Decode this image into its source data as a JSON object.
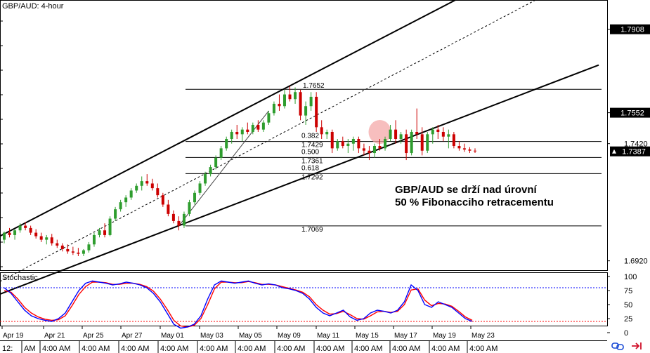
{
  "chart_data": {
    "type": "candlestick",
    "title": "GBP/AUD: 4-hour",
    "price_axis": {
      "ylim": [
        1.688,
        1.803
      ],
      "ticks": [
        1.692,
        1.742,
        1.7552,
        1.7908
      ],
      "current_price": "1.7387",
      "current_price_value": 1.7387
    },
    "x_axis": {
      "date_labels": [
        "Apr 19",
        "Apr 21",
        "Apr 25",
        "Apr 27",
        "May 01",
        "May 03",
        "May 05",
        "May 09",
        "May 11",
        "May 15",
        "May 17",
        "May 19",
        "May 23"
      ],
      "time_labels": [
        "12:",
        "AM",
        "4:00 AM",
        "4:00 AM",
        "4:00 AM",
        "4:00 AM",
        "4:00 AM",
        "4:00 AM",
        "4:00 AM",
        "4:00 AM",
        "4:00 AM",
        "4:00 AM",
        "4:00 AM",
        "4:00 AM"
      ]
    },
    "candles": [
      [
        1.701,
        1.7045,
        1.6995,
        1.704
      ],
      [
        1.704,
        1.706,
        1.702,
        1.703
      ],
      [
        1.703,
        1.7055,
        1.701,
        1.705
      ],
      [
        1.705,
        1.708,
        1.704,
        1.707
      ],
      [
        1.707,
        1.7085,
        1.705,
        1.706
      ],
      [
        1.706,
        1.707,
        1.703,
        1.704
      ],
      [
        1.704,
        1.7055,
        1.7015,
        1.7025
      ],
      [
        1.7025,
        1.704,
        1.7,
        1.701
      ],
      [
        1.701,
        1.703,
        1.699,
        1.702
      ],
      [
        1.702,
        1.7035,
        1.6985,
        1.6995
      ],
      [
        1.6995,
        1.701,
        1.6975,
        1.6985
      ],
      [
        1.6985,
        1.6995,
        1.696,
        1.697
      ],
      [
        1.697,
        1.699,
        1.695,
        1.696
      ],
      [
        1.696,
        1.698,
        1.6945,
        1.6955
      ],
      [
        1.6955,
        1.6975,
        1.694,
        1.695
      ],
      [
        1.695,
        1.697,
        1.694,
        1.6965
      ],
      [
        1.6965,
        1.7,
        1.6955,
        1.699
      ],
      [
        1.699,
        1.704,
        1.698,
        1.703
      ],
      [
        1.703,
        1.706,
        1.702,
        1.705
      ],
      [
        1.705,
        1.708,
        1.702,
        1.703
      ],
      [
        1.703,
        1.711,
        1.7025,
        1.71
      ],
      [
        1.71,
        1.715,
        1.709,
        1.714
      ],
      [
        1.714,
        1.718,
        1.713,
        1.717
      ],
      [
        1.717,
        1.72,
        1.715,
        1.719
      ],
      [
        1.719,
        1.723,
        1.718,
        1.722
      ],
      [
        1.722,
        1.725,
        1.721,
        1.724
      ],
      [
        1.724,
        1.728,
        1.722,
        1.726
      ],
      [
        1.726,
        1.729,
        1.724,
        1.725
      ],
      [
        1.725,
        1.727,
        1.722,
        1.723
      ],
      [
        1.723,
        1.725,
        1.719,
        1.72
      ],
      [
        1.72,
        1.721,
        1.715,
        1.716
      ],
      [
        1.716,
        1.718,
        1.711,
        1.712
      ],
      [
        1.712,
        1.7135,
        1.708,
        1.709
      ],
      [
        1.709,
        1.711,
        1.705,
        1.707
      ],
      [
        1.707,
        1.713,
        1.706,
        1.712
      ],
      [
        1.712,
        1.718,
        1.711,
        1.717
      ],
      [
        1.717,
        1.722,
        1.716,
        1.721
      ],
      [
        1.721,
        1.726,
        1.72,
        1.725
      ],
      [
        1.725,
        1.73,
        1.724,
        1.729
      ],
      [
        1.729,
        1.733,
        1.728,
        1.732
      ],
      [
        1.732,
        1.737,
        1.731,
        1.736
      ],
      [
        1.736,
        1.741,
        1.735,
        1.74
      ],
      [
        1.74,
        1.745,
        1.739,
        1.744
      ],
      [
        1.744,
        1.748,
        1.742,
        1.747
      ],
      [
        1.747,
        1.75,
        1.744,
        1.746
      ],
      [
        1.746,
        1.749,
        1.743,
        1.748
      ],
      [
        1.748,
        1.751,
        1.746,
        1.747
      ],
      [
        1.747,
        1.751,
        1.746,
        1.75
      ],
      [
        1.75,
        1.752,
        1.747,
        1.748
      ],
      [
        1.748,
        1.752,
        1.747,
        1.751
      ],
      [
        1.751,
        1.756,
        1.75,
        1.755
      ],
      [
        1.755,
        1.76,
        1.754,
        1.759
      ],
      [
        1.759,
        1.763,
        1.756,
        1.758
      ],
      [
        1.758,
        1.765,
        1.757,
        1.763
      ],
      [
        1.763,
        1.7665,
        1.76,
        1.761
      ],
      [
        1.761,
        1.766,
        1.759,
        1.764
      ],
      [
        1.764,
        1.765,
        1.752,
        1.754
      ],
      [
        1.754,
        1.76,
        1.75,
        1.758
      ],
      [
        1.758,
        1.764,
        1.756,
        1.762
      ],
      [
        1.762,
        1.764,
        1.747,
        1.749
      ],
      [
        1.749,
        1.752,
        1.744,
        1.746
      ],
      [
        1.746,
        1.748,
        1.744,
        1.747
      ],
      [
        1.747,
        1.748,
        1.738,
        1.74
      ],
      [
        1.74,
        1.744,
        1.739,
        1.743
      ],
      [
        1.743,
        1.745,
        1.74,
        1.741
      ],
      [
        1.741,
        1.744,
        1.738,
        1.742
      ],
      [
        1.742,
        1.745,
        1.739,
        1.744
      ],
      [
        1.744,
        1.745,
        1.738,
        1.74
      ],
      [
        1.74,
        1.742,
        1.737,
        1.739
      ],
      [
        1.739,
        1.741,
        1.735,
        1.738
      ],
      [
        1.738,
        1.742,
        1.736,
        1.741
      ],
      [
        1.741,
        1.744,
        1.739,
        1.74
      ],
      [
        1.74,
        1.745,
        1.739,
        1.744
      ],
      [
        1.744,
        1.75,
        1.743,
        1.748
      ],
      [
        1.748,
        1.752,
        1.742,
        1.744
      ],
      [
        1.744,
        1.747,
        1.742,
        1.746
      ],
      [
        1.746,
        1.748,
        1.735,
        1.738
      ],
      [
        1.738,
        1.748,
        1.737,
        1.747
      ],
      [
        1.747,
        1.757,
        1.744,
        1.746
      ],
      [
        1.746,
        1.749,
        1.737,
        1.739
      ],
      [
        1.739,
        1.747,
        1.738,
        1.746
      ],
      [
        1.746,
        1.749,
        1.742,
        1.748
      ],
      [
        1.748,
        1.75,
        1.744,
        1.747
      ],
      [
        1.747,
        1.749,
        1.743,
        1.745
      ],
      [
        1.745,
        1.748,
        1.74,
        1.746
      ],
      [
        1.746,
        1.747,
        1.74,
        1.741
      ],
      [
        1.741,
        1.743,
        1.739,
        1.74
      ],
      [
        1.74,
        1.742,
        1.7385,
        1.7395
      ],
      [
        1.7395,
        1.7405,
        1.738,
        1.739
      ],
      [
        1.739,
        1.74,
        1.738,
        1.7387
      ]
    ],
    "fibonacci": {
      "levels": [
        {
          "label": "1.7652",
          "value": 1.7652
        },
        {
          "label": "0.382",
          "value": 1.7429
        },
        {
          "label": "1.7429",
          "value": 1.7429
        },
        {
          "label": "0.500",
          "value": 1.7361
        },
        {
          "label": "1.7361",
          "value": 1.7361
        },
        {
          "label": "0.618",
          "value": 1.7292
        },
        {
          "label": "1.7292",
          "value": 1.7292
        },
        {
          "label": "1.7069",
          "value": 1.7069
        }
      ]
    },
    "annotation": {
      "line1": "GBP/AUD se drží nad úrovní",
      "line2": "50 % Fibonacciho retracementu"
    },
    "stochastic": {
      "label": "Stochastic",
      "ticks": [
        "100",
        "75",
        "50",
        "25",
        "0"
      ],
      "levels": [
        80,
        20
      ],
      "main": [
        80,
        70,
        55,
        40,
        30,
        25,
        22,
        20,
        25,
        35,
        55,
        75,
        88,
        92,
        90,
        88,
        85,
        87,
        90,
        88,
        85,
        80,
        70,
        55,
        35,
        15,
        8,
        10,
        15,
        30,
        60,
        85,
        92,
        90,
        88,
        90,
        92,
        88,
        85,
        87,
        85,
        80,
        78,
        75,
        70,
        60,
        45,
        35,
        30,
        35,
        40,
        28,
        22,
        25,
        35,
        40,
        38,
        35,
        40,
        55,
        85,
        75,
        50,
        45,
        55,
        50,
        45,
        35,
        25,
        20
      ],
      "signal": [
        75,
        72,
        60,
        45,
        35,
        28,
        24,
        22,
        23,
        30,
        48,
        68,
        82,
        90,
        90,
        89,
        86,
        86,
        88,
        88,
        86,
        82,
        74,
        60,
        42,
        22,
        12,
        10,
        13,
        25,
        50,
        78,
        90,
        90,
        89,
        89,
        91,
        89,
        86,
        86,
        85,
        82,
        79,
        76,
        72,
        64,
        50,
        40,
        33,
        34,
        38,
        32,
        25,
        24,
        30,
        37,
        38,
        36,
        38,
        50,
        76,
        78,
        58,
        48,
        52,
        51,
        47,
        38,
        28,
        22
      ],
      "level_colors": {
        "upper": "#0000ff",
        "lower": "#ff0000"
      }
    },
    "colors": {
      "line_main": "#0000ff",
      "line_signal": "#ff0000",
      "candle_up": "#2e9d2e",
      "candle_down": "#cc0000",
      "channel": "#000000",
      "price_box": "#000000",
      "highlight": "#f3a3a3"
    }
  }
}
